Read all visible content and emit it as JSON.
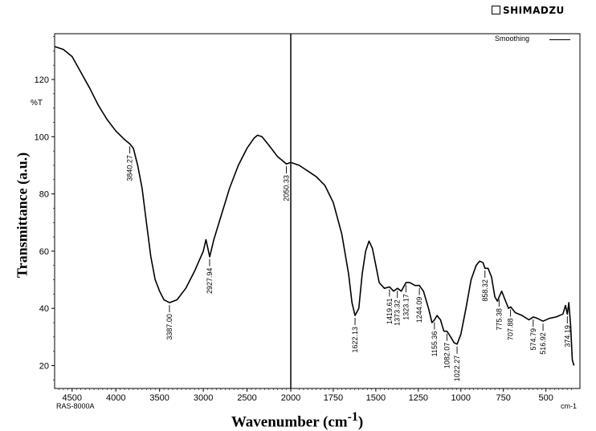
{
  "brand": "SHIMADZU",
  "instrument": "RAS-8000A",
  "chart_data": {
    "type": "line",
    "xlabel": "Wavenumber (cm-1)",
    "ylabel": "Transmittance (a.u.)",
    "y_unit_label": "%T",
    "x_unit_label": "cm-1",
    "legend": [
      "Smoothing"
    ],
    "legend_position": "top-right",
    "xlim": [
      4700,
      300
    ],
    "ylim": [
      12,
      136
    ],
    "x_reversed": true,
    "grid": false,
    "xticks": [
      4500,
      4000,
      3500,
      3000,
      2500,
      2000,
      1750,
      1500,
      1250,
      1000,
      750,
      500
    ],
    "xtick_labels": [
      "4500",
      "4000",
      "3500",
      "3000",
      "2500",
      "2000",
      "1750",
      "1500",
      "1250",
      "1000",
      "750",
      "500"
    ],
    "yticks": [
      20,
      40,
      60,
      80,
      100,
      120
    ],
    "ytick_labels": [
      "20",
      "40",
      "60",
      "80",
      "100",
      "120"
    ],
    "split_at": 2000,
    "series": [
      {
        "name": "Smoothing",
        "points": [
          [
            4700,
            131.5
          ],
          [
            4600,
            130.5
          ],
          [
            4500,
            128
          ],
          [
            4400,
            122.5
          ],
          [
            4300,
            117
          ],
          [
            4200,
            111
          ],
          [
            4100,
            106
          ],
          [
            4000,
            102
          ],
          [
            3900,
            99
          ],
          [
            3840,
            97.5
          ],
          [
            3800,
            96
          ],
          [
            3750,
            90
          ],
          [
            3700,
            82
          ],
          [
            3650,
            70
          ],
          [
            3600,
            58
          ],
          [
            3550,
            50
          ],
          [
            3500,
            46
          ],
          [
            3450,
            43
          ],
          [
            3387,
            42
          ],
          [
            3300,
            43
          ],
          [
            3200,
            47
          ],
          [
            3100,
            53
          ],
          [
            3000,
            60
          ],
          [
            2970,
            64
          ],
          [
            2927,
            58
          ],
          [
            2880,
            64
          ],
          [
            2800,
            72
          ],
          [
            2700,
            82
          ],
          [
            2600,
            90
          ],
          [
            2500,
            96
          ],
          [
            2420,
            99.5
          ],
          [
            2380,
            100.5
          ],
          [
            2330,
            100
          ],
          [
            2250,
            97
          ],
          [
            2150,
            93
          ],
          [
            2050,
            90.5
          ],
          [
            2000,
            91
          ],
          [
            1950,
            90
          ],
          [
            1900,
            88
          ],
          [
            1850,
            86
          ],
          [
            1800,
            83
          ],
          [
            1750,
            77
          ],
          [
            1700,
            66
          ],
          [
            1660,
            52
          ],
          [
            1640,
            42
          ],
          [
            1622,
            37.5
          ],
          [
            1600,
            40
          ],
          [
            1580,
            52
          ],
          [
            1560,
            60
          ],
          [
            1540,
            63.5
          ],
          [
            1520,
            61
          ],
          [
            1500,
            55
          ],
          [
            1480,
            49
          ],
          [
            1450,
            47
          ],
          [
            1419,
            47.5
          ],
          [
            1395,
            46
          ],
          [
            1373,
            47
          ],
          [
            1350,
            46
          ],
          [
            1323,
            49
          ],
          [
            1300,
            49
          ],
          [
            1270,
            48
          ],
          [
            1244,
            48
          ],
          [
            1220,
            46
          ],
          [
            1190,
            40
          ],
          [
            1170,
            35
          ],
          [
            1155,
            36
          ],
          [
            1140,
            37.5
          ],
          [
            1120,
            36
          ],
          [
            1100,
            32
          ],
          [
            1082,
            32
          ],
          [
            1060,
            30
          ],
          [
            1040,
            28
          ],
          [
            1022,
            27.5
          ],
          [
            1000,
            31
          ],
          [
            970,
            40
          ],
          [
            940,
            50
          ],
          [
            910,
            55
          ],
          [
            890,
            56.5
          ],
          [
            870,
            56
          ],
          [
            858,
            54
          ],
          [
            840,
            54
          ],
          [
            820,
            51
          ],
          [
            800,
            44
          ],
          [
            785,
            42.5
          ],
          [
            775,
            44
          ],
          [
            760,
            46
          ],
          [
            740,
            43
          ],
          [
            720,
            40
          ],
          [
            707,
            40.5
          ],
          [
            680,
            38.5
          ],
          [
            640,
            37.5
          ],
          [
            600,
            36
          ],
          [
            574,
            37
          ],
          [
            550,
            36.5
          ],
          [
            517,
            35.5
          ],
          [
            480,
            36.5
          ],
          [
            440,
            37
          ],
          [
            400,
            38
          ],
          [
            385,
            41
          ],
          [
            374,
            38
          ],
          [
            365,
            42
          ],
          [
            355,
            34
          ],
          [
            345,
            22
          ],
          [
            335,
            20
          ]
        ]
      }
    ],
    "peak_labels": [
      {
        "wavenumber": 3840.27,
        "label": "3840.27"
      },
      {
        "wavenumber": 3387.0,
        "label": "3387.00"
      },
      {
        "wavenumber": 2927.94,
        "label": "2927.94"
      },
      {
        "wavenumber": 2050.33,
        "label": "2050.33"
      },
      {
        "wavenumber": 1622.13,
        "label": "1622.13"
      },
      {
        "wavenumber": 1419.61,
        "label": "1419.61"
      },
      {
        "wavenumber": 1373.32,
        "label": "1373.32"
      },
      {
        "wavenumber": 1323.17,
        "label": "1323.17"
      },
      {
        "wavenumber": 1244.09,
        "label": "1244.09"
      },
      {
        "wavenumber": 1155.36,
        "label": "1155.36"
      },
      {
        "wavenumber": 1082.07,
        "label": "1082.07"
      },
      {
        "wavenumber": 1022.27,
        "label": "1022.27"
      },
      {
        "wavenumber": 858.32,
        "label": "858.32"
      },
      {
        "wavenumber": 775.38,
        "label": "775.38"
      },
      {
        "wavenumber": 707.88,
        "label": "707.88"
      },
      {
        "wavenumber": 574.79,
        "label": "574.79"
      },
      {
        "wavenumber": 516.92,
        "label": "516.92"
      },
      {
        "wavenumber": 374.19,
        "label": "374.19"
      }
    ]
  }
}
